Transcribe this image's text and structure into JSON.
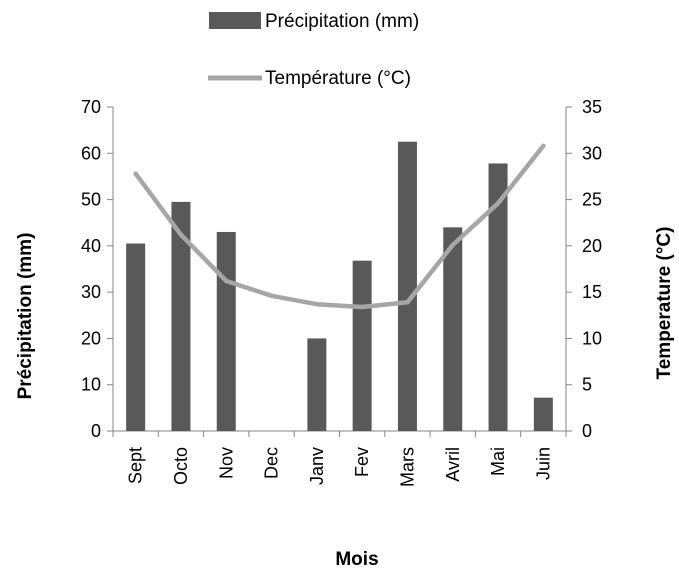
{
  "chart_data": {
    "type": "bar",
    "categories": [
      "Sept",
      "Octo",
      "Nov",
      "Dec",
      "Janv",
      "Fev",
      "Mars",
      "Avril",
      "Mai",
      "Juin"
    ],
    "series": [
      {
        "name": "Précipitation (mm)",
        "type": "bar",
        "axis": "left",
        "color": "#595959",
        "values": [
          40.5,
          49.5,
          43,
          0,
          20,
          36.8,
          62.5,
          44,
          57.8,
          7.2
        ]
      },
      {
        "name": "Température (°C)",
        "type": "line",
        "axis": "right",
        "color": "#a6a6a6",
        "values": [
          27.8,
          21.2,
          16.2,
          14.6,
          13.7,
          13.4,
          13.9,
          20.1,
          24.6,
          30.8
        ]
      }
    ],
    "xlabel": "Mois",
    "ylabel": "Précipitation (mm)",
    "y2label": "Temperature (°C)",
    "ylim": [
      0,
      70
    ],
    "yticks": [
      0,
      10,
      20,
      30,
      40,
      50,
      60,
      70
    ],
    "y2lim": [
      0,
      35
    ],
    "y2ticks": [
      0,
      5,
      10,
      15,
      20,
      25,
      30,
      35
    ],
    "grid": false,
    "legend": "top"
  }
}
